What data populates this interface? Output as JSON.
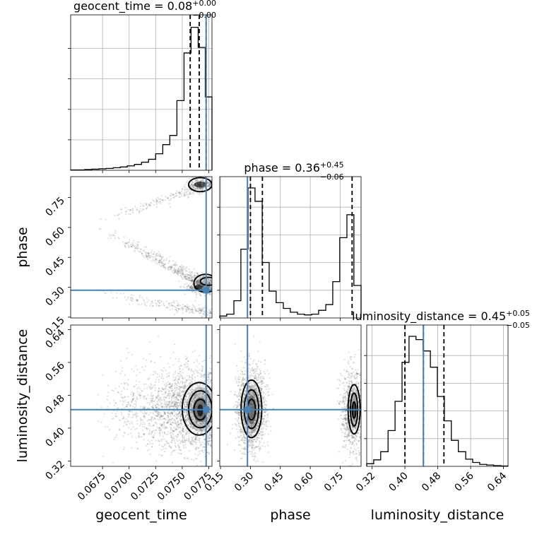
{
  "chart_data": {
    "type": "corner",
    "parameters": [
      "geocent_time",
      "phase",
      "luminosity_distance"
    ],
    "truths": {
      "geocent_time": 0.07725,
      "phase": 0.285,
      "luminosity_distance": 0.445
    },
    "titles": [
      {
        "param": "geocent_time",
        "text": "geocent_time = 0.08",
        "sup": "+0.00",
        "sub": "−0.00"
      },
      {
        "param": "phase",
        "text": "phase = 0.36",
        "sup": "+0.45",
        "sub": "−0.06"
      },
      {
        "param": "luminosity_distance",
        "text": "luminosity_distance = 0.45",
        "sup": "+0.05",
        "sub": "−0.05"
      }
    ],
    "axes": {
      "geocent_time": {
        "range": [
          0.0645,
          0.0778
        ],
        "ticks": [
          0.0675,
          0.07,
          0.0725,
          0.075,
          0.0775
        ],
        "tick_labels": [
          "0.0675",
          "0.0700",
          "0.0725",
          "0.0750",
          "0.0775"
        ]
      },
      "phase": {
        "range": [
          0.146,
          0.855
        ],
        "ticks": [
          0.15,
          0.3,
          0.45,
          0.6,
          0.75
        ],
        "tick_labels": [
          "0.15",
          "0.30",
          "0.45",
          "0.60",
          "0.75"
        ]
      },
      "luminosity_distance": {
        "range": [
          0.307,
          0.651
        ],
        "ticks": [
          0.32,
          0.4,
          0.48,
          0.56,
          0.64
        ],
        "tick_labels": [
          "0.32",
          "0.40",
          "0.48",
          "0.56",
          "0.64"
        ]
      }
    },
    "marginals": [
      {
        "param": "geocent_time",
        "quantiles": [
          0.07575,
          0.0766,
          0.07725
        ],
        "bin_edges": [
          0.0645,
          0.06517,
          0.06583,
          0.0665,
          0.06717,
          0.06783,
          0.0685,
          0.06917,
          0.06983,
          0.0705,
          0.07117,
          0.07183,
          0.0725,
          0.07317,
          0.07383,
          0.0745,
          0.07517,
          0.07583,
          0.0765,
          0.07717,
          0.0778
        ],
        "counts": [
          1,
          1,
          2,
          3,
          4,
          5,
          7,
          9,
          12,
          16,
          22,
          30,
          45,
          70,
          95,
          190,
          320,
          390,
          335,
          200
        ]
      },
      {
        "param": "phase",
        "quantiles": [
          0.3,
          0.36,
          0.81
        ],
        "bin_edges": [
          0.146,
          0.181,
          0.217,
          0.252,
          0.288,
          0.323,
          0.359,
          0.394,
          0.429,
          0.465,
          0.5,
          0.536,
          0.571,
          0.607,
          0.642,
          0.678,
          0.713,
          0.748,
          0.784,
          0.819,
          0.855
        ],
        "counts": [
          5,
          10,
          45,
          180,
          340,
          305,
          145,
          70,
          40,
          25,
          15,
          10,
          8,
          10,
          20,
          35,
          95,
          210,
          270,
          85
        ]
      },
      {
        "param": "luminosity_distance",
        "quantiles": [
          0.4,
          0.445,
          0.495
        ],
        "bin_edges": [
          0.307,
          0.324,
          0.341,
          0.359,
          0.376,
          0.393,
          0.41,
          0.427,
          0.444,
          0.462,
          0.479,
          0.496,
          0.513,
          0.53,
          0.548,
          0.565,
          0.582,
          0.599,
          0.616,
          0.634,
          0.651
        ],
        "counts": [
          8,
          20,
          45,
          110,
          200,
          320,
          400,
          390,
          355,
          305,
          215,
          140,
          80,
          45,
          22,
          12,
          6,
          4,
          2,
          1
        ]
      }
    ],
    "scatter_panels": [
      {
        "x": "geocent_time",
        "y": "phase"
      },
      {
        "x": "geocent_time",
        "y": "luminosity_distance"
      },
      {
        "x": "phase",
        "y": "luminosity_distance"
      }
    ]
  }
}
